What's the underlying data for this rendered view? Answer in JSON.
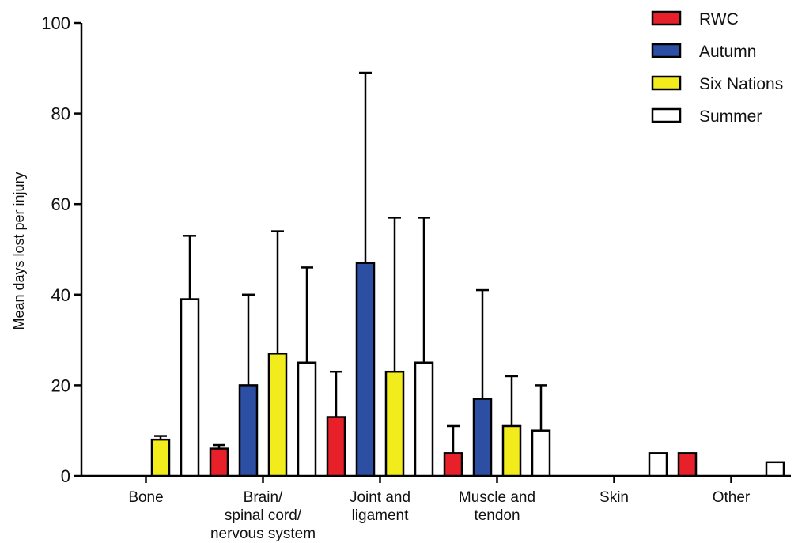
{
  "chart_data": {
    "type": "bar",
    "ylabel": "Mean days lost per injury",
    "xlabel": "",
    "ylim": [
      0,
      100
    ],
    "yticks": [
      0,
      20,
      40,
      60,
      80,
      100
    ],
    "categories": [
      [
        "Bone"
      ],
      [
        "Brain/",
        "spinal cord/",
        "nervous system"
      ],
      [
        "Joint and",
        "ligament"
      ],
      [
        "Muscle and",
        "tendon"
      ],
      [
        "Skin"
      ],
      [
        "Other"
      ]
    ],
    "series": [
      {
        "name": "RWC",
        "color": "#e8202a",
        "values": [
          0,
          6,
          13,
          5,
          0,
          5
        ],
        "error": [
          0,
          0.8,
          10,
          6,
          0,
          0
        ]
      },
      {
        "name": "Autumn",
        "color": "#2c4fa3",
        "values": [
          0,
          20,
          47,
          17,
          0,
          0
        ],
        "error": [
          0,
          20,
          42,
          24,
          0,
          0
        ]
      },
      {
        "name": "Six Nations",
        "color": "#f2ec1d",
        "values": [
          8,
          27,
          23,
          11,
          0,
          0
        ],
        "error": [
          0.8,
          27,
          34,
          11,
          0,
          0
        ]
      },
      {
        "name": "Summer",
        "color": "#ffffff",
        "values": [
          39,
          25,
          25,
          10,
          5,
          3
        ],
        "error": [
          14,
          21,
          32,
          10,
          0,
          0
        ]
      }
    ],
    "legend_position": "top-right",
    "grid": false
  }
}
